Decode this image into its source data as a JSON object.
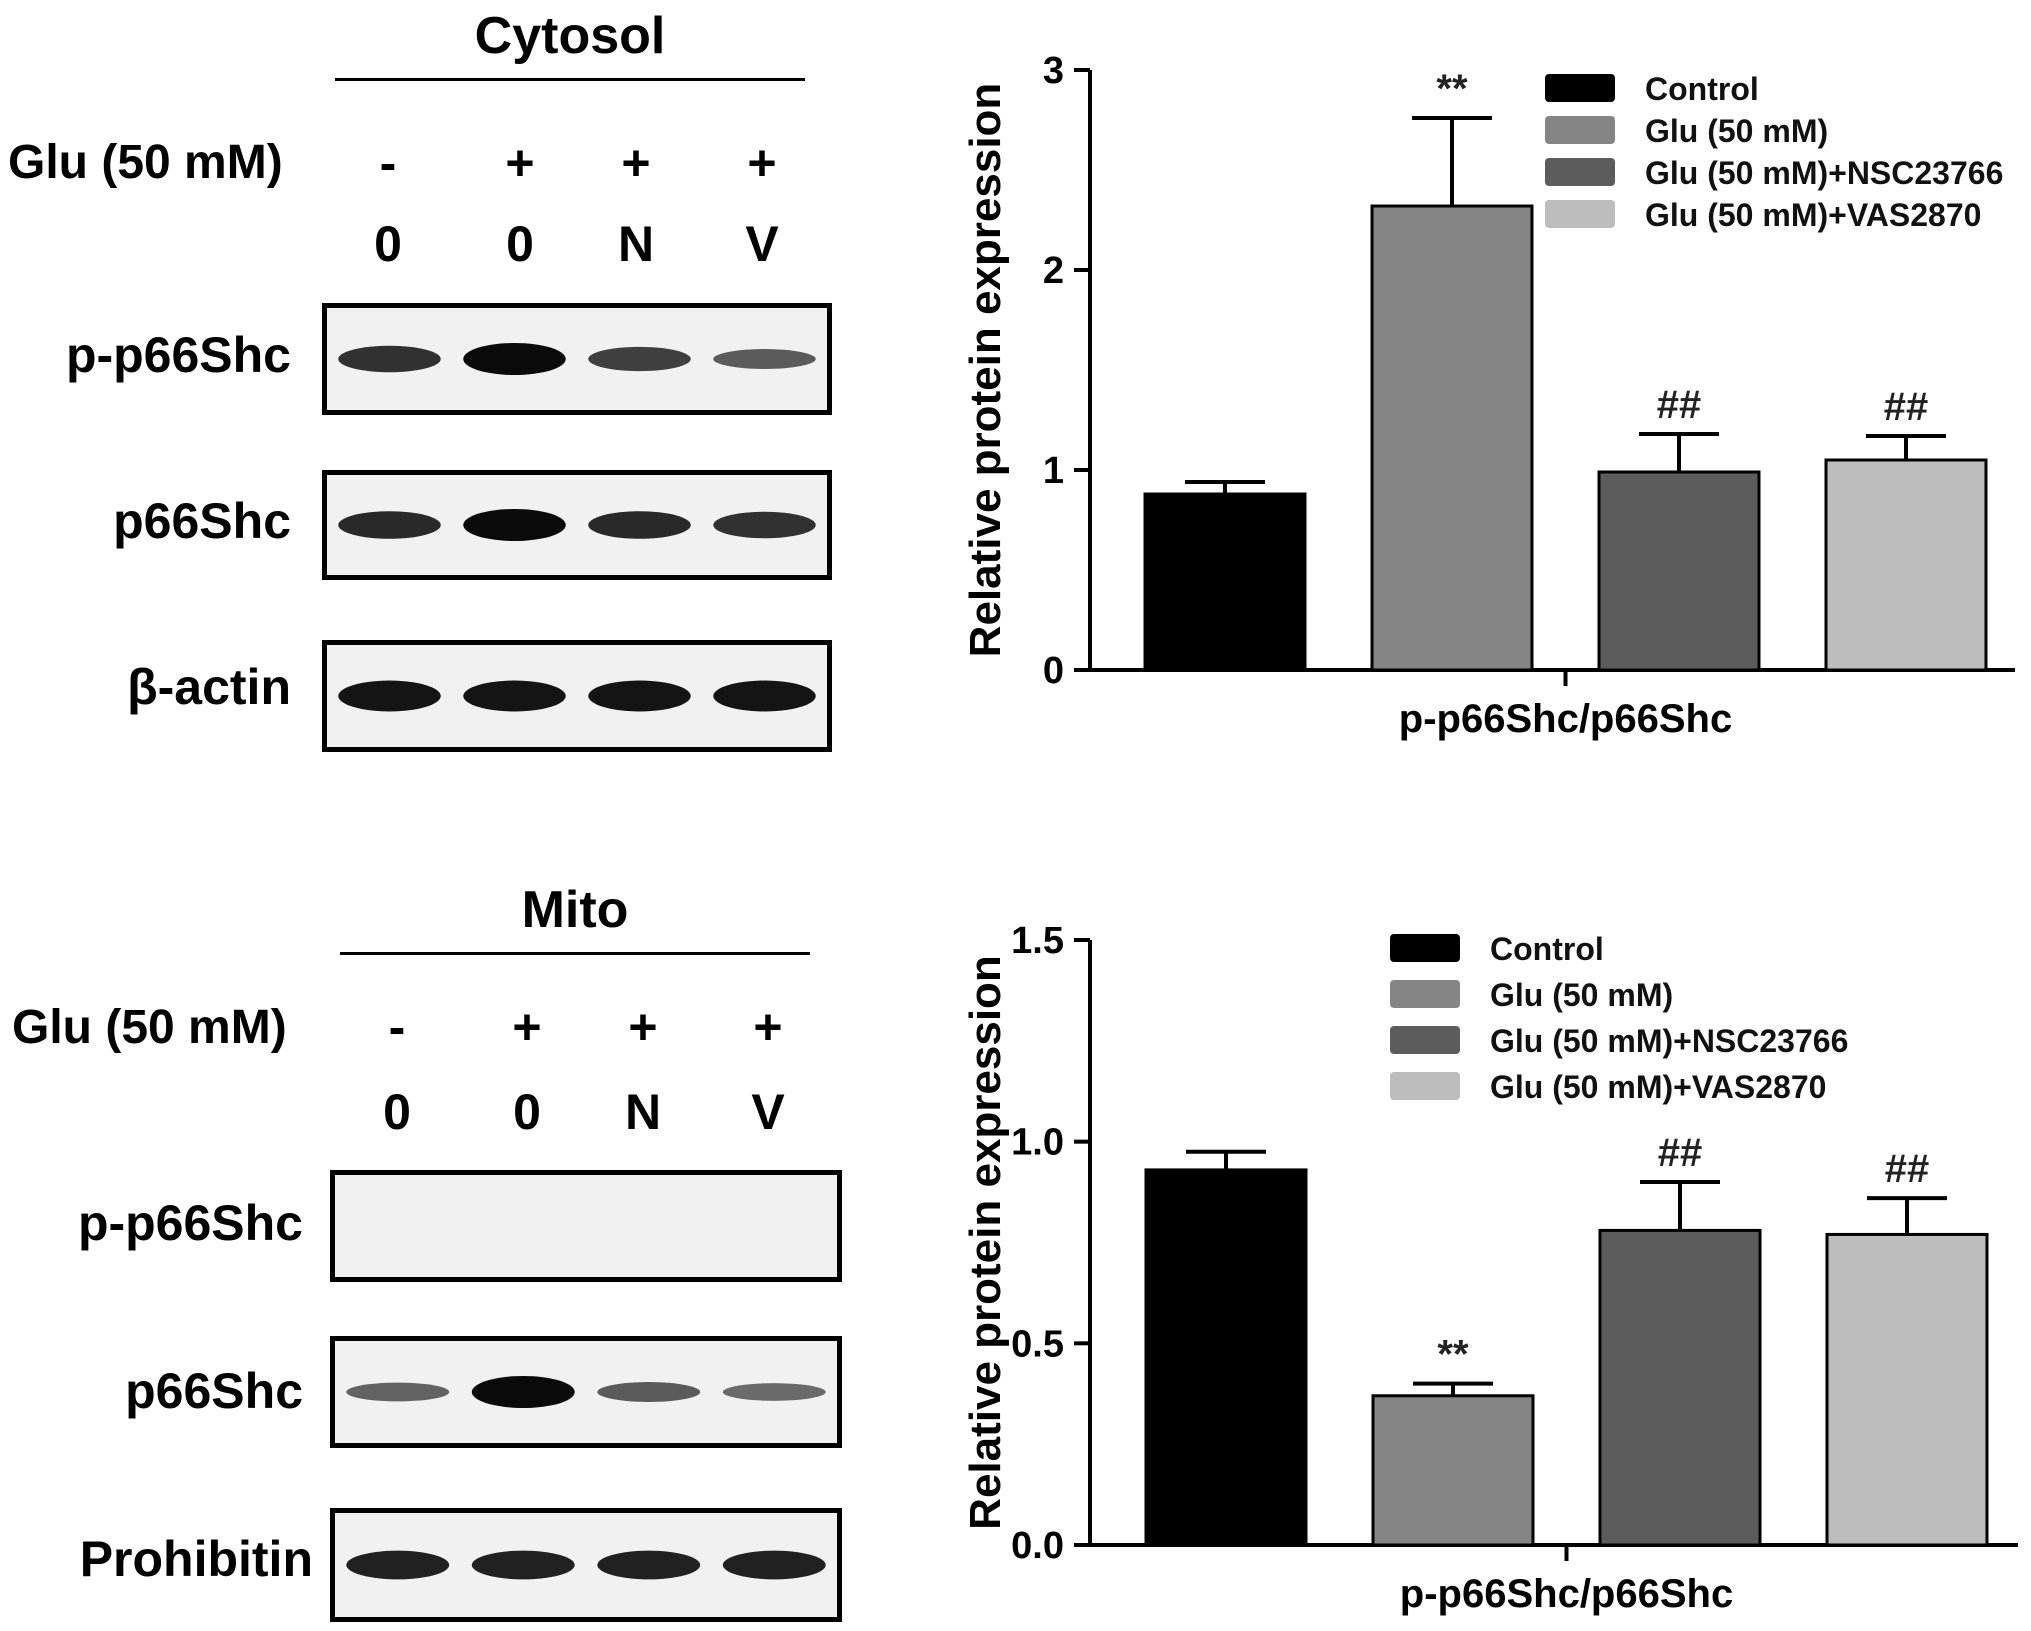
{
  "top_blot": {
    "title": "Cytosol",
    "treatment_label": "Glu (50 mM)",
    "treatment_signs": [
      "-",
      "+",
      "+",
      "+"
    ],
    "lane_labels": [
      "0",
      "0",
      "N",
      "V"
    ],
    "rows": [
      {
        "label": "p-p66Shc",
        "band_intensity": [
          0.75,
          1.0,
          0.65,
          0.45
        ]
      },
      {
        "label": "p66Shc",
        "band_intensity": [
          0.8,
          1.0,
          0.8,
          0.75
        ]
      },
      {
        "label": "β-actin",
        "band_intensity": [
          0.95,
          0.95,
          0.95,
          0.95
        ]
      }
    ]
  },
  "bottom_blot": {
    "title": "Mito",
    "treatment_label": "Glu (50 mM)",
    "treatment_signs": [
      "-",
      "+",
      "+",
      "+"
    ],
    "lane_labels": [
      "0",
      "0",
      "N",
      "V"
    ],
    "rows": [
      {
        "label": "p-p66Shc",
        "band_intensity": [
          0,
          0,
          0,
          0
        ]
      },
      {
        "label": "p66Shc",
        "band_intensity": [
          0.4,
          1.0,
          0.45,
          0.35
        ]
      },
      {
        "label": "Prohibitin",
        "band_intensity": [
          0.85,
          0.85,
          0.85,
          0.85
        ]
      }
    ]
  },
  "colors": {
    "control": "#000000",
    "glu": "#858585",
    "nsc": "#5c5c5c",
    "vas": "#bdbdbd"
  },
  "chart_data": [
    {
      "type": "bar",
      "ylabel": "Relative protein expression",
      "xlabel": "p-p66Shc/p66Shc",
      "ylim": [
        0,
        3
      ],
      "yticks": [
        "0",
        "1",
        "2",
        "3"
      ],
      "legend_position": "top-right",
      "series": [
        {
          "name": "Control",
          "value": 0.88,
          "error": 0.06,
          "annotation": ""
        },
        {
          "name": "Glu (50 mM)",
          "value": 2.32,
          "error": 0.44,
          "annotation": "**"
        },
        {
          "name": "Glu (50 mM)+NSC23766",
          "value": 0.99,
          "error": 0.19,
          "annotation": "##"
        },
        {
          "name": "Glu (50 mM)+VAS2870",
          "value": 1.05,
          "error": 0.12,
          "annotation": "##"
        }
      ]
    },
    {
      "type": "bar",
      "ylabel": "Relative protein expression",
      "xlabel": "p-p66Shc/p66Shc",
      "ylim": [
        0,
        1.5
      ],
      "yticks": [
        "0.0",
        "0.5",
        "1.0",
        "1.5"
      ],
      "legend_position": "top-right",
      "series": [
        {
          "name": "Control",
          "value": 0.93,
          "error": 0.045,
          "annotation": ""
        },
        {
          "name": "Glu (50 mM)",
          "value": 0.37,
          "error": 0.03,
          "annotation": "**"
        },
        {
          "name": "Glu (50 mM)+NSC23766",
          "value": 0.78,
          "error": 0.12,
          "annotation": "##"
        },
        {
          "name": "Glu (50 mM)+VAS2870",
          "value": 0.77,
          "error": 0.09,
          "annotation": "##"
        }
      ]
    }
  ]
}
